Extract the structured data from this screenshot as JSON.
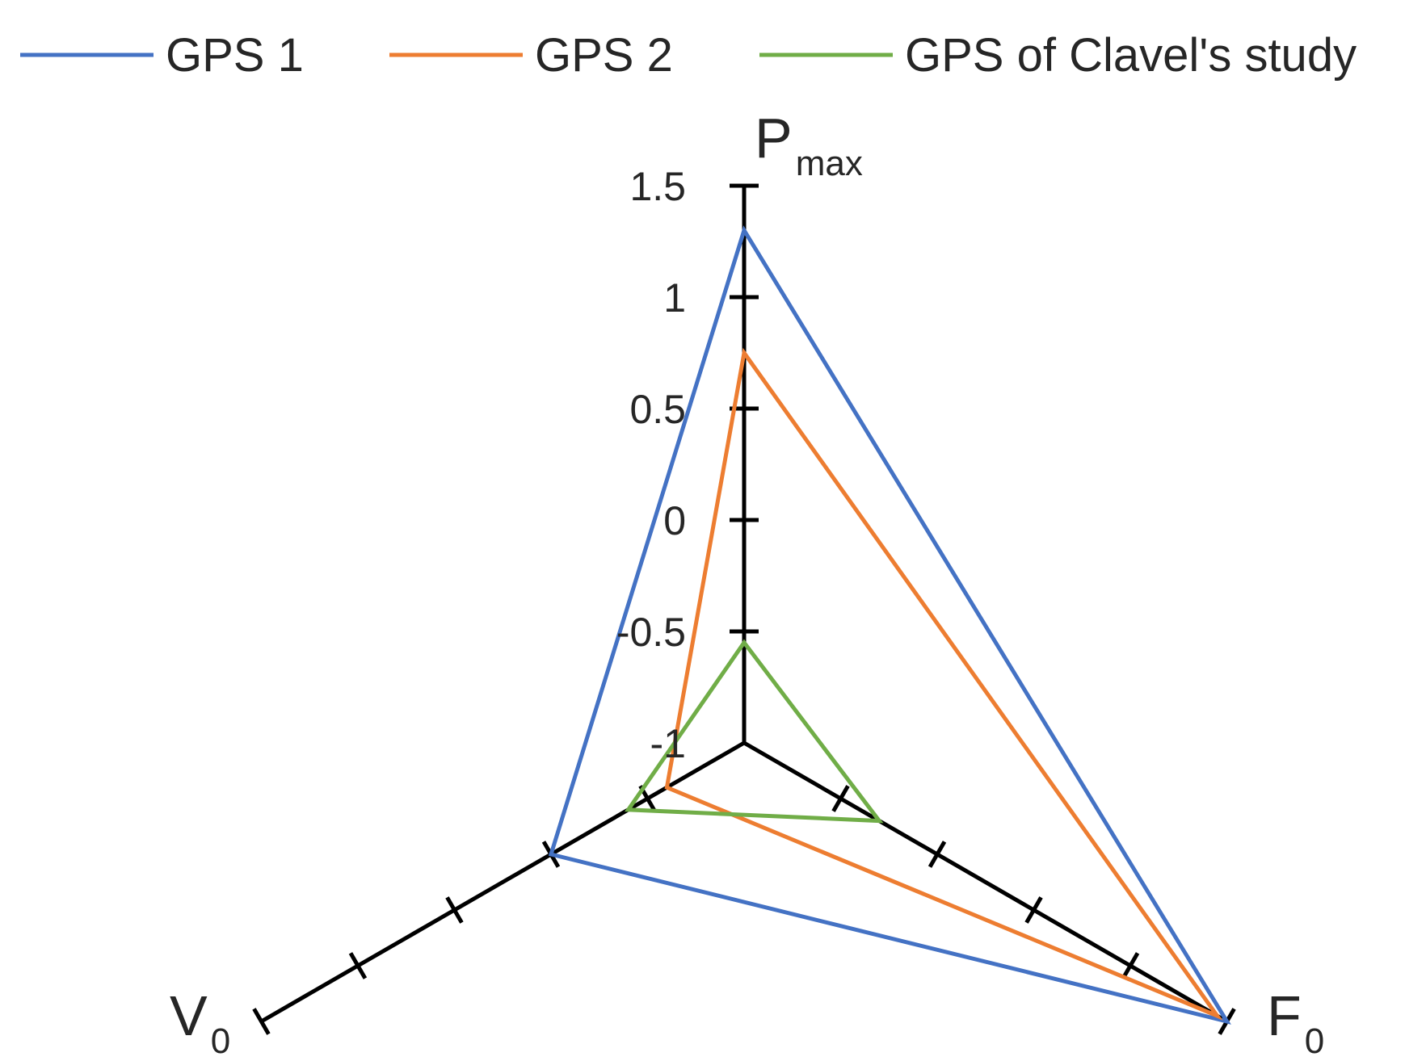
{
  "chart_data": {
    "type": "radar",
    "axes": [
      {
        "id": "pmax",
        "main": "P",
        "sub": "max"
      },
      {
        "id": "f0",
        "main": "F",
        "sub": "0"
      },
      {
        "id": "v0",
        "main": "V",
        "sub": "0"
      }
    ],
    "rlim": [
      -1,
      1.5
    ],
    "tick_values": [
      -1,
      -0.5,
      0,
      0.5,
      1,
      1.5
    ],
    "tick_labels": [
      "-1",
      "-0.5",
      "0",
      "0.5",
      "1",
      "1.5"
    ],
    "legend_position": "top",
    "series": [
      {
        "name": "GPS 1",
        "color": "#4472C4",
        "values": [
          1.3,
          1.5,
          0.0
        ]
      },
      {
        "name": "GPS 2",
        "color": "#ED7D31",
        "values": [
          0.75,
          1.45,
          -0.6
        ]
      },
      {
        "name": "GPS of Clavel's study",
        "color": "#70AD47",
        "values": [
          -0.55,
          -0.3,
          -0.4
        ]
      }
    ]
  }
}
